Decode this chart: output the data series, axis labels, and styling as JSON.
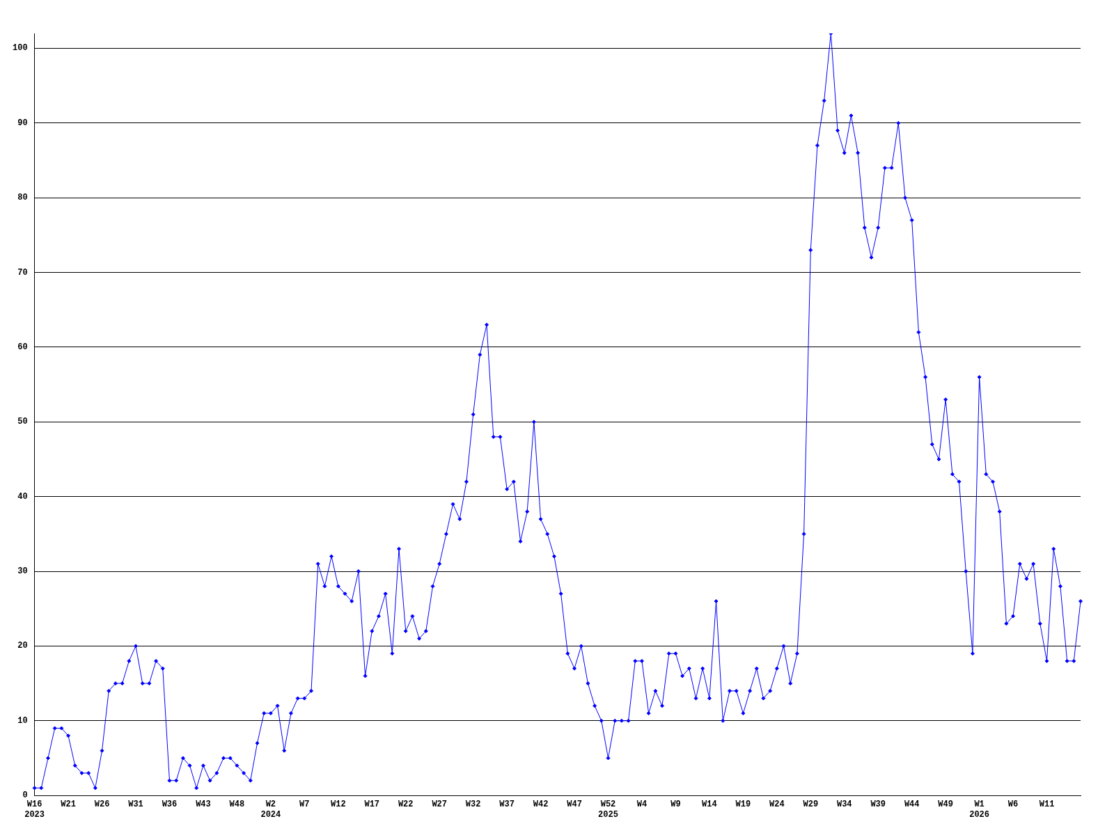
{
  "chart_data": {
    "type": "line",
    "categories": [
      "W16\n2023",
      null,
      null,
      null,
      null,
      "W21",
      null,
      null,
      null,
      null,
      "W26",
      null,
      null,
      null,
      null,
      "W31",
      null,
      null,
      null,
      null,
      "W36",
      null,
      null,
      null,
      null,
      "W43",
      null,
      null,
      null,
      null,
      "W48",
      null,
      null,
      null,
      null,
      "W2\n2024",
      null,
      null,
      null,
      null,
      "W7",
      null,
      null,
      null,
      null,
      "W12",
      null,
      null,
      null,
      null,
      "W17",
      null,
      null,
      null,
      null,
      "W22",
      null,
      null,
      null,
      null,
      "W27",
      null,
      null,
      null,
      null,
      "W32",
      null,
      null,
      null,
      null,
      "W37",
      null,
      null,
      null,
      null,
      "W42",
      null,
      null,
      null,
      null,
      "W47",
      null,
      null,
      null,
      null,
      "W52\n2025",
      null,
      null,
      null,
      null,
      "W4",
      null,
      null,
      null,
      null,
      "W9",
      null,
      null,
      null,
      null,
      "W14",
      null,
      null,
      null,
      null,
      "W19",
      null,
      null,
      null,
      null,
      "W24",
      null,
      null,
      null,
      null,
      "W29",
      null,
      null,
      null,
      null,
      "W34",
      null,
      null,
      null,
      null,
      "W39",
      null,
      null,
      null,
      null,
      "W44",
      null,
      null,
      null,
      null,
      "W49",
      null,
      null,
      null,
      null,
      "W1\n2026",
      null,
      null,
      null,
      null,
      "W6",
      null,
      null,
      null,
      null,
      "W11",
      null,
      null,
      null,
      null,
      null
    ],
    "series": [
      {
        "color": "#0000ff",
        "values": [
          1,
          1,
          5,
          9,
          9,
          8,
          4,
          3,
          3,
          1,
          6,
          14,
          15,
          15,
          18,
          20,
          15,
          15,
          18,
          17,
          2,
          2,
          5,
          4,
          1,
          4,
          2,
          3,
          5,
          5,
          4,
          3,
          2,
          7,
          11,
          11,
          12,
          6,
          11,
          13,
          13,
          14,
          31,
          28,
          32,
          28,
          27,
          26,
          30,
          16,
          22,
          24,
          27,
          19,
          33,
          22,
          24,
          21,
          22,
          28,
          31,
          35,
          39,
          37,
          42,
          51,
          59,
          63,
          48,
          48,
          41,
          42,
          34,
          38,
          50,
          37,
          35,
          32,
          27,
          19,
          17,
          20,
          15,
          12,
          10,
          5,
          10,
          10,
          10,
          18,
          18,
          11,
          14,
          12,
          19,
          19,
          16,
          17,
          13,
          17,
          13,
          26,
          10,
          14,
          14,
          11,
          14,
          17,
          13,
          14,
          17,
          20,
          15,
          19,
          35,
          73,
          87,
          93,
          102,
          89,
          86,
          91,
          86,
          76,
          72,
          76,
          84,
          84,
          90,
          80,
          77,
          62,
          56,
          47,
          45,
          53,
          43,
          42,
          30,
          19,
          56,
          43,
          42,
          38,
          23,
          24,
          31,
          29,
          31,
          23,
          18,
          33,
          28,
          18,
          18,
          26
        ]
      }
    ],
    "ylim": [
      0,
      102
    ],
    "yticks": [
      0,
      10,
      20,
      30,
      40,
      50,
      60,
      70,
      80,
      90,
      100
    ],
    "grid": "y",
    "legend": false,
    "marker": "diamond",
    "line_style": "solid"
  }
}
